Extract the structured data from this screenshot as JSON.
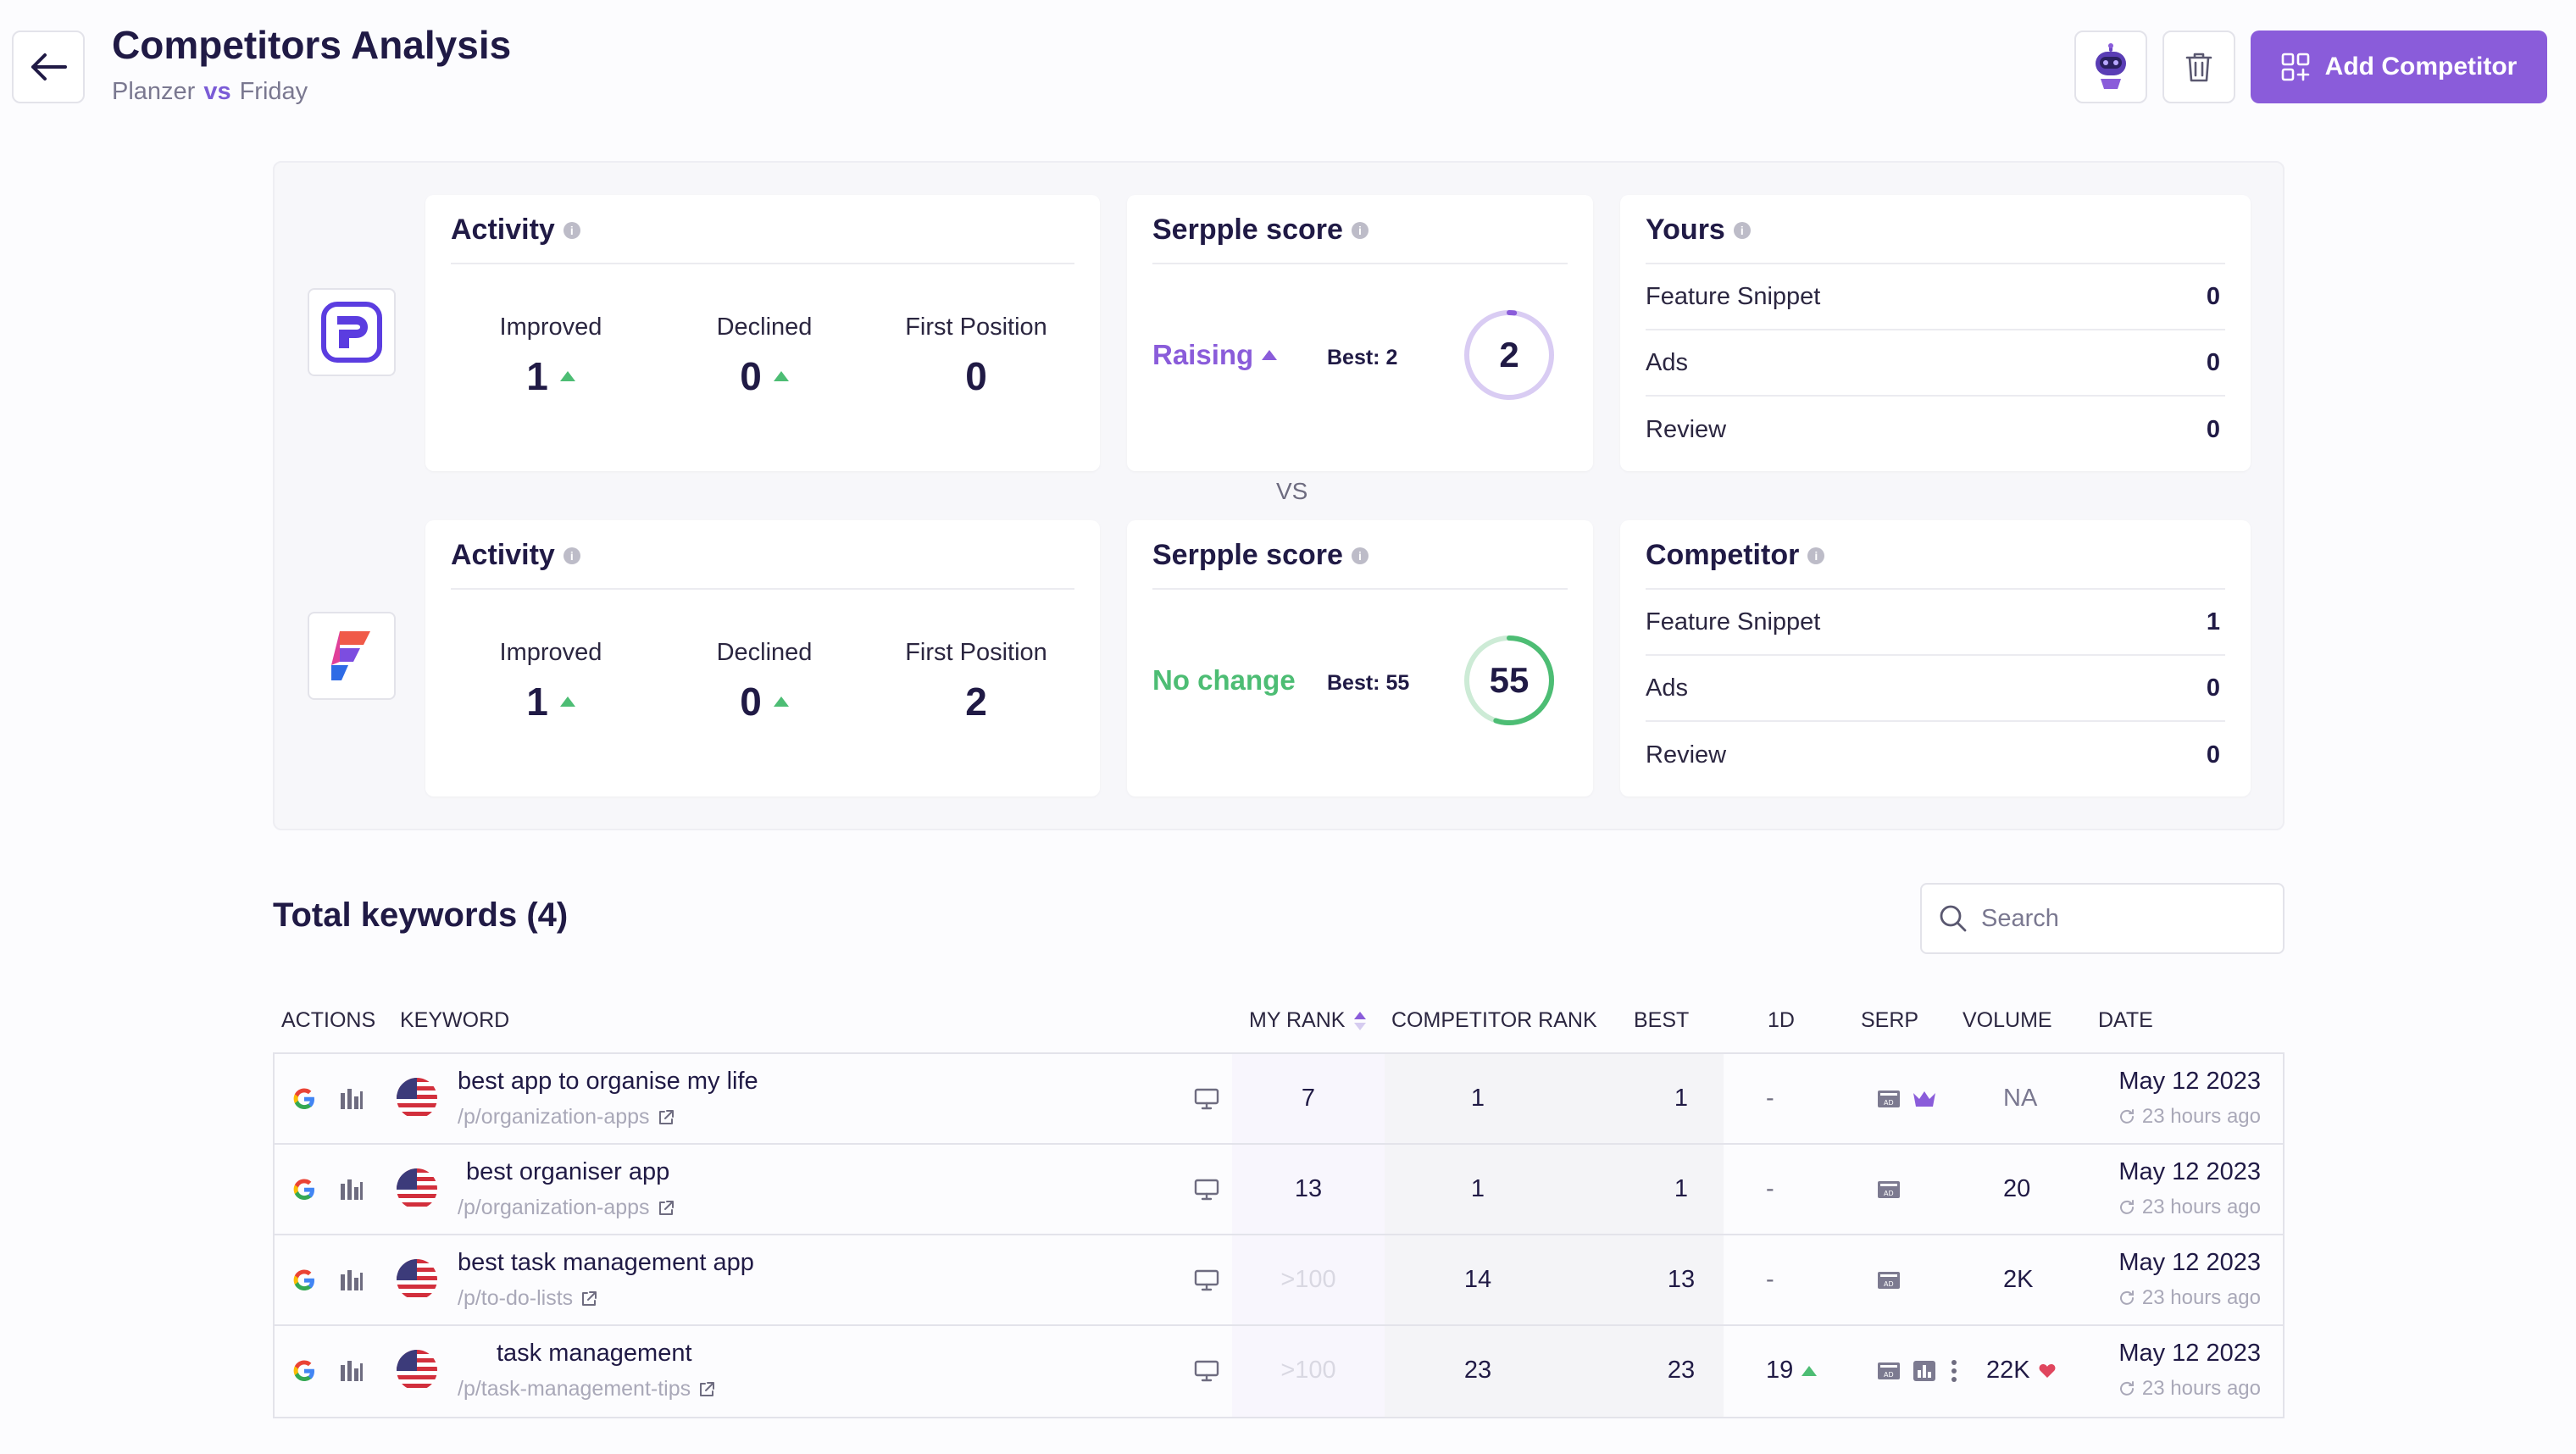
{
  "header": {
    "title": "Competitors Analysis",
    "subject": "Planzer",
    "vs": "vs",
    "competitor": "Friday",
    "add_button": "Add Competitor"
  },
  "colors": {
    "accent": "#8A5CDA",
    "raising": "#8A5CDA",
    "no_change": "#4DBD74",
    "up": "#4DBD74",
    "down": "#E0465E"
  },
  "overview": {
    "vs_label": "VS",
    "mine": {
      "activity": {
        "title": "Activity",
        "improved_label": "Improved",
        "improved": "1",
        "declined_label": "Declined",
        "declined": "0",
        "first_label": "First Position",
        "first": "0"
      },
      "score": {
        "title": "Serpple score",
        "trend": "Raising",
        "best": "Best: 2",
        "value": "2",
        "fraction": 0.02
      },
      "features": {
        "title": "Yours",
        "rows": [
          {
            "label": "Feature Snippet",
            "value": "0"
          },
          {
            "label": "Ads",
            "value": "0"
          },
          {
            "label": "Review",
            "value": "0"
          }
        ]
      }
    },
    "competitor": {
      "activity": {
        "title": "Activity",
        "improved_label": "Improved",
        "improved": "1",
        "declined_label": "Declined",
        "declined": "0",
        "first_label": "First Position",
        "first": "2"
      },
      "score": {
        "title": "Serpple score",
        "trend": "No change",
        "best": "Best: 55",
        "value": "55",
        "fraction": 0.55
      },
      "features": {
        "title": "Competitor",
        "rows": [
          {
            "label": "Feature Snippet",
            "value": "1"
          },
          {
            "label": "Ads",
            "value": "0"
          },
          {
            "label": "Review",
            "value": "0"
          }
        ]
      }
    }
  },
  "keywords": {
    "title": "Total keywords (4)",
    "search_placeholder": "Search",
    "columns": {
      "actions": "ACTIONS",
      "keyword": "KEYWORD",
      "my_rank": "MY RANK",
      "competitor_rank": "COMPETITOR RANK",
      "best": "BEST",
      "one_d": "1D",
      "serp": "SERP",
      "volume": "VOLUME",
      "date": "DATE"
    },
    "rows": [
      {
        "keyword": "best app to organise my life",
        "url": "/p/organization-apps",
        "my_rank": "7",
        "competitor_rank": "1",
        "best": "1",
        "one_d": "-",
        "volume": "NA",
        "date": "May 12 2023",
        "ago": "23 hours ago"
      },
      {
        "keyword": "best organiser app",
        "url": "/p/organization-apps",
        "my_rank": "13",
        "competitor_rank": "1",
        "best": "1",
        "one_d": "-",
        "volume": "20",
        "date": "May 12 2023",
        "ago": "23 hours ago"
      },
      {
        "keyword": "best task management app",
        "url": "/p/to-do-lists",
        "my_rank": ">100",
        "competitor_rank": "14",
        "best": "13",
        "one_d": "-",
        "volume": "2K",
        "date": "May 12 2023",
        "ago": "23 hours ago"
      },
      {
        "keyword": "task management",
        "url": "/p/task-management-tips",
        "my_rank": ">100",
        "competitor_rank": "23",
        "best": "23",
        "one_d": "19",
        "volume": "22K",
        "date": "May 12 2023",
        "ago": "23 hours ago"
      }
    ]
  }
}
